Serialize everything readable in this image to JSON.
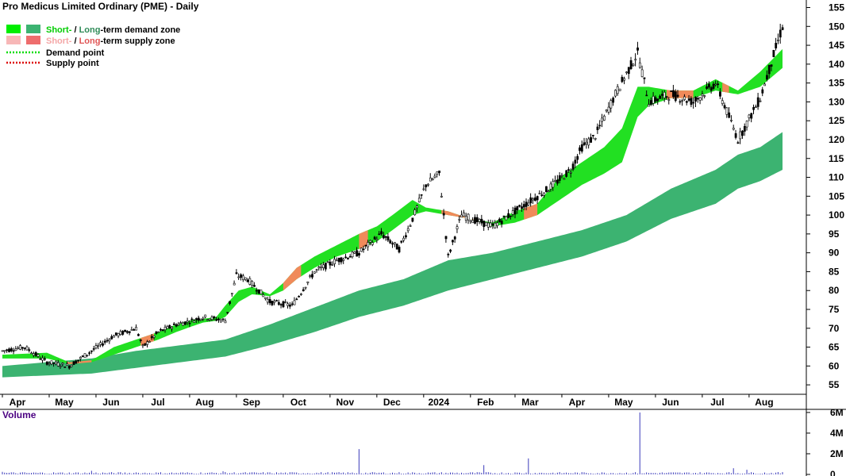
{
  "chart_data": {
    "type": "candlestick",
    "title": "Pro Medicus Limited Ordinary (PME) - Daily",
    "legend": [
      {
        "prefix": "Short-",
        "sep": " / ",
        "prefix2": "Long",
        "suffix": "-term demand zone",
        "swatch_short": "#00ee00",
        "swatch_long": "#3cb371"
      },
      {
        "prefix": "Short-",
        "sep": " / ",
        "prefix2": "Long",
        "suffix": "-term supply zone",
        "swatch_short": "#f7b7b7",
        "swatch_long": "#ee6d6d"
      },
      {
        "label": "Demand point",
        "color": "#00dd00"
      },
      {
        "label": "Supply point",
        "color": "#dd0000"
      }
    ],
    "colors": {
      "short_demand": "#22e022",
      "long_demand": "#3cb371",
      "short_supply": "#f08a5a",
      "grid": "#cccccc",
      "volume_label": "#4b0082",
      "legend_short": "#00cc00",
      "legend_long": "#2e8b57",
      "legend_supply_short": "#f4a6a6",
      "legend_supply_long": "#e05555"
    },
    "x_labels": [
      "Apr",
      "May",
      "Jun",
      "Jul",
      "Aug",
      "Sep",
      "Oct",
      "Nov",
      "Dec",
      "2024",
      "Feb",
      "Mar",
      "Apr",
      "May",
      "Jun",
      "Jul",
      "Aug"
    ],
    "y_ticks": [
      55,
      60,
      65,
      70,
      75,
      80,
      85,
      90,
      95,
      100,
      105,
      110,
      115,
      120,
      125,
      130,
      135,
      140,
      145,
      150,
      155
    ],
    "ylim": [
      52.5,
      157
    ],
    "volume": {
      "label": "Volume",
      "ticks": [
        "6M",
        "4M",
        "2M",
        "0"
      ],
      "tick_values": [
        6000000,
        4000000,
        2000000,
        0
      ],
      "ylim": [
        0,
        6300000
      ]
    },
    "price_anchors": {
      "x": [
        0,
        10,
        20,
        30,
        40,
        50,
        60,
        63,
        70,
        78,
        85,
        90,
        100,
        105,
        110,
        120,
        130,
        140,
        150,
        160,
        170,
        178,
        184,
        190,
        196,
        200,
        206,
        215,
        220,
        235,
        245,
        255,
        260,
        266,
        275,
        285,
        290,
        300,
        310,
        320,
        330,
        340,
        350
      ],
      "y": [
        64,
        65,
        61,
        60,
        64,
        68,
        70,
        65,
        69,
        71,
        72,
        73,
        72,
        84,
        83,
        77,
        76,
        85,
        88,
        90,
        95,
        91,
        99,
        108,
        111,
        89,
        100,
        98,
        97,
        103,
        107,
        112,
        118,
        121,
        132,
        143,
        130,
        132,
        130,
        135,
        120,
        131,
        150
      ]
    },
    "short_zone_upper": {
      "x": [
        0,
        20,
        30,
        40,
        50,
        60,
        70,
        78,
        85,
        90,
        96,
        100,
        106,
        112,
        120,
        126,
        132,
        140,
        150,
        160,
        168,
        175,
        184,
        190,
        200,
        210,
        220,
        230,
        240,
        250,
        260,
        270,
        278,
        285,
        290,
        300,
        310,
        320,
        330,
        340,
        350
      ],
      "y": [
        63,
        63.5,
        61,
        61.5,
        65,
        67,
        69,
        71,
        72.2,
        72.5,
        73,
        76,
        80,
        81,
        79,
        82,
        86,
        89,
        92,
        95,
        97,
        100,
        104,
        102,
        101,
        99,
        98,
        101,
        103,
        110,
        114,
        118,
        123,
        134,
        134,
        133,
        133,
        136,
        133,
        138,
        144
      ]
    },
    "short_zone_lower": {
      "x": [
        0,
        20,
        30,
        40,
        50,
        60,
        70,
        78,
        85,
        90,
        96,
        100,
        106,
        112,
        120,
        126,
        132,
        140,
        150,
        160,
        168,
        175,
        184,
        190,
        200,
        210,
        220,
        230,
        240,
        250,
        260,
        270,
        278,
        285,
        290,
        300,
        310,
        320,
        330,
        340,
        350
      ],
      "y": [
        62,
        62,
        60.5,
        61,
        63,
        65,
        67,
        69,
        70.5,
        71.5,
        72,
        73,
        77,
        79,
        78.5,
        80,
        83,
        86,
        89,
        91,
        93,
        96,
        100,
        101,
        100,
        99,
        97,
        98,
        100,
        104,
        108,
        111,
        114,
        126,
        129,
        131,
        131,
        133,
        132,
        134,
        139
      ]
    },
    "short_supply_segments": [
      [
        29,
        40
      ],
      [
        62,
        68
      ],
      [
        126,
        134
      ],
      [
        160,
        164
      ],
      [
        197,
        212
      ],
      [
        234,
        240
      ],
      [
        298,
        310
      ],
      [
        323,
        326
      ]
    ],
    "long_zone_upper": {
      "x": [
        0,
        20,
        40,
        60,
        80,
        100,
        120,
        140,
        160,
        180,
        200,
        220,
        240,
        260,
        280,
        300,
        320,
        330,
        340,
        350
      ],
      "y": [
        60,
        61,
        62,
        64,
        65.5,
        67,
        71,
        75.5,
        80,
        83,
        88,
        90,
        93,
        96,
        100,
        107,
        112,
        116,
        118,
        122
      ]
    },
    "long_zone_lower": {
      "x": [
        0,
        20,
        40,
        60,
        80,
        100,
        120,
        140,
        160,
        180,
        200,
        220,
        240,
        260,
        280,
        300,
        320,
        330,
        340,
        350
      ],
      "y": [
        57,
        57.5,
        58,
        59.5,
        61,
        62.5,
        65.5,
        69,
        73,
        76,
        80,
        83,
        86,
        89,
        93,
        99,
        103,
        107,
        109,
        112
      ]
    },
    "volume_spikes": [
      [
        0,
        0.25
      ],
      [
        40,
        0.35
      ],
      [
        60,
        0.2
      ],
      [
        99,
        0.3
      ],
      [
        160,
        2.45
      ],
      [
        216,
        0.9
      ],
      [
        236,
        1.55
      ],
      [
        286,
        6.0
      ],
      [
        328,
        0.6
      ],
      [
        334,
        0.45
      ]
    ]
  }
}
